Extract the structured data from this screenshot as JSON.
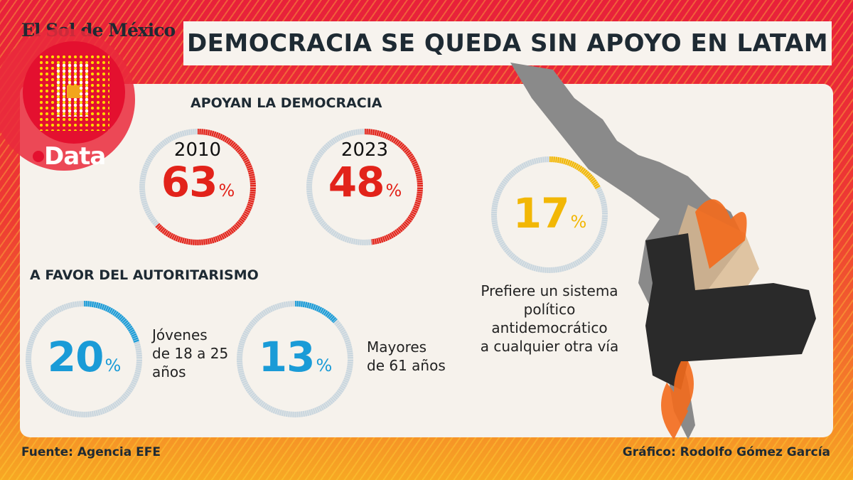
{
  "masthead": "El Sol de México",
  "brand": "Data",
  "title": "DEMOCRACIA SE QUEDA SIN APOYO EN LATAM",
  "colors": {
    "red": "#e2231a",
    "blue": "#1a9bd7",
    "yellow": "#f2b705",
    "track": "#c9d6de"
  },
  "sections": {
    "support": "APOYAN LA DEMOCRACIA",
    "authoritarian": "A FAVOR DEL AUTORITARISMO"
  },
  "chart_data": [
    {
      "type": "pie",
      "label": "2010",
      "value": 63,
      "unit": "%",
      "section": "APOYAN LA DEMOCRACIA"
    },
    {
      "type": "pie",
      "label": "2023",
      "value": 48,
      "unit": "%",
      "section": "APOYAN LA DEMOCRACIA"
    },
    {
      "type": "pie",
      "label": "Prefiere un sistema político antidemocrático a cualquier otra vía",
      "value": 17,
      "unit": "%"
    },
    {
      "type": "pie",
      "label": "Jóvenes de 18 a 25 años",
      "value": 20,
      "unit": "%",
      "section": "A FAVOR DEL AUTORITARISMO"
    },
    {
      "type": "pie",
      "label": "Mayores de 61 años",
      "value": 13,
      "unit": "%",
      "section": "A FAVOR DEL AUTORITARISMO"
    }
  ],
  "gauges": {
    "g2010": {
      "year": "2010",
      "value": "63",
      "pct": "%"
    },
    "g2023": {
      "year": "2023",
      "value": "48",
      "pct": "%"
    },
    "g17": {
      "value": "17",
      "pct": "%",
      "line1": "Prefiere un sistema",
      "line2": "político antidemocrático",
      "line3": "a cualquier otra vía"
    },
    "g20": {
      "value": "20",
      "pct": "%",
      "line1": "Jóvenes",
      "line2": "de 18 a 25",
      "line3": "años"
    },
    "g13": {
      "value": "13",
      "pct": "%",
      "line1": "Mayores",
      "line2": "de 61 años"
    }
  },
  "footer": {
    "source": "Fuente: Agencia EFE",
    "credit": "Gráfico: Rodolfo Gómez García"
  }
}
